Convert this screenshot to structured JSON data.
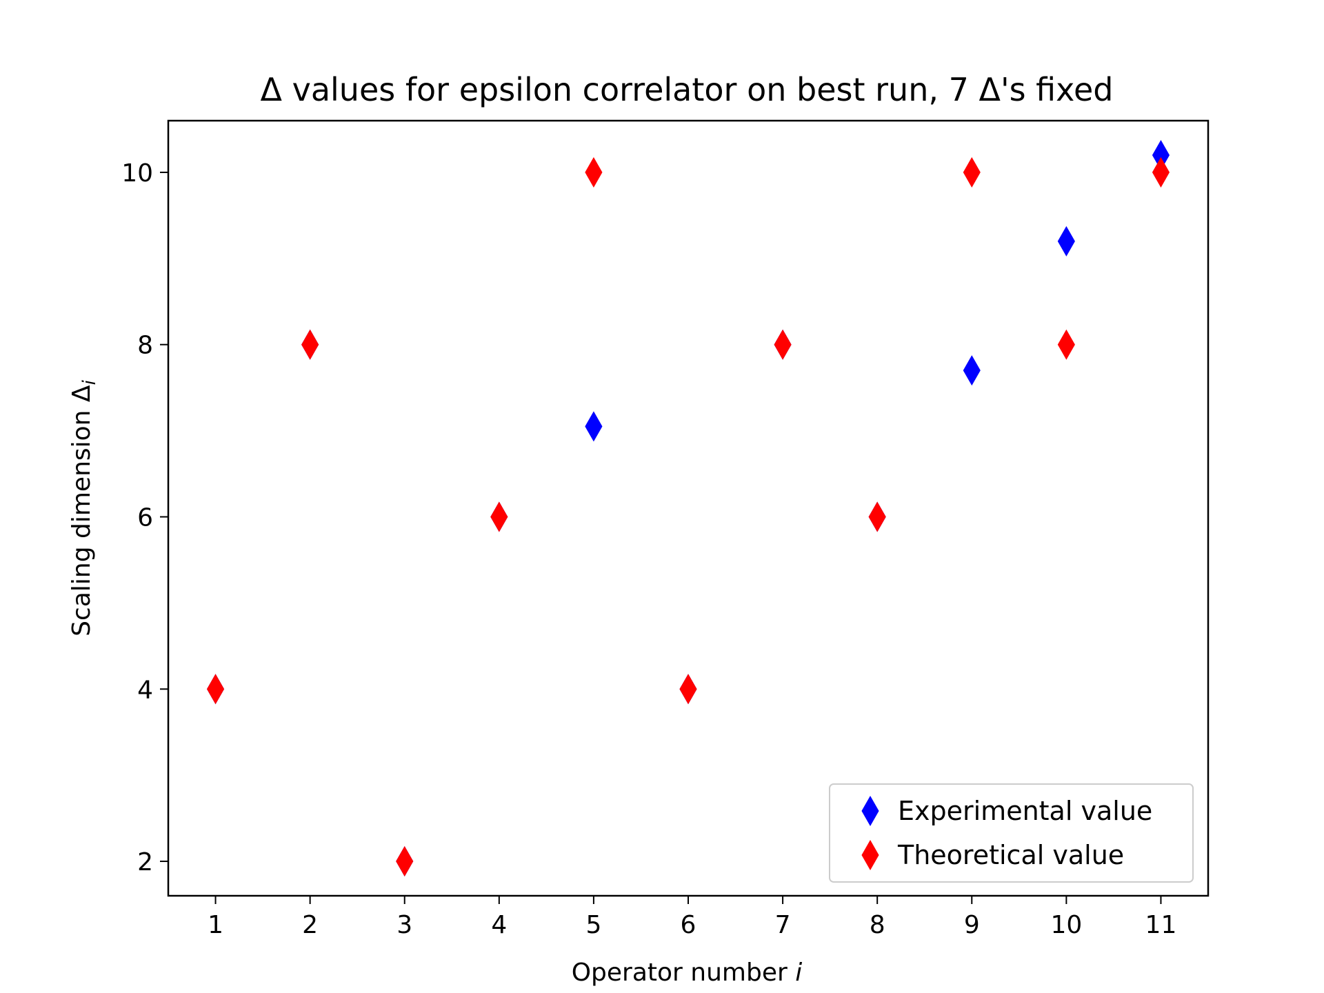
{
  "chart_data": {
    "type": "scatter",
    "title": "Δ values for epsilon correlator on best run, 7 Δ's fixed",
    "xlabel": "Operator number",
    "xlabel_italic": "i",
    "ylabel": "Scaling dimension Δ",
    "ylabel_sub": "i",
    "xlim": [
      0.5,
      11.5
    ],
    "ylim": [
      1.6,
      10.6
    ],
    "xticks": [
      1,
      2,
      3,
      4,
      5,
      6,
      7,
      8,
      9,
      10,
      11
    ],
    "yticks": [
      2,
      4,
      6,
      8,
      10
    ],
    "grid": false,
    "legend_position": "lower-right",
    "series": [
      {
        "name": "Experimental value",
        "color": "#0000ff",
        "marker": "thin-diamond",
        "points": [
          {
            "x": 1,
            "y": 4.0
          },
          {
            "x": 2,
            "y": 8.0
          },
          {
            "x": 3,
            "y": 2.0
          },
          {
            "x": 4,
            "y": 6.0
          },
          {
            "x": 5,
            "y": 7.05
          },
          {
            "x": 6,
            "y": 4.0
          },
          {
            "x": 7,
            "y": 8.0
          },
          {
            "x": 8,
            "y": 6.0
          },
          {
            "x": 9,
            "y": 7.7
          },
          {
            "x": 10,
            "y": 9.2
          },
          {
            "x": 11,
            "y": 10.2
          }
        ]
      },
      {
        "name": "Theoretical value",
        "color": "#ff0000",
        "marker": "thin-diamond",
        "points": [
          {
            "x": 1,
            "y": 4
          },
          {
            "x": 2,
            "y": 8
          },
          {
            "x": 3,
            "y": 2
          },
          {
            "x": 4,
            "y": 6
          },
          {
            "x": 5,
            "y": 10
          },
          {
            "x": 6,
            "y": 4
          },
          {
            "x": 7,
            "y": 8
          },
          {
            "x": 8,
            "y": 6
          },
          {
            "x": 9,
            "y": 10
          },
          {
            "x": 10,
            "y": 8
          },
          {
            "x": 11,
            "y": 10
          }
        ]
      }
    ]
  }
}
